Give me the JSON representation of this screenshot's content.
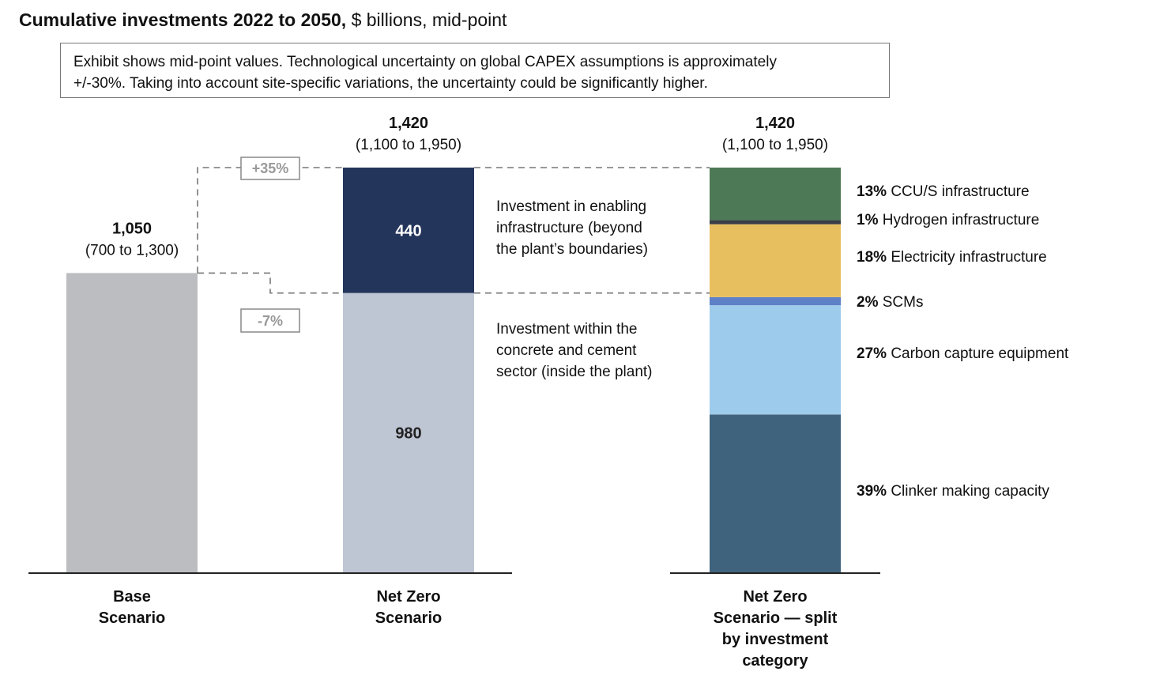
{
  "title_bold": "Cumulative investments 2022 to 2050,",
  "title_unit": "$ billions, mid-point",
  "note": "Exhibit shows mid-point values. Technological uncertainty on global CAPEX assumptions is approximately +/-30%. Taking into account site-specific variations, the uncertainty could be significantly higher.",
  "note_lines": [
    "Exhibit shows mid-point values. Technological uncertainty on global CAPEX assumptions is approximately",
    "+/-30%. Taking into account site-specific variations, the uncertainty could be significantly higher."
  ],
  "colors": {
    "base": "#bcbdc0",
    "inside_plant": "#bec5d3",
    "enabling": "#23355a",
    "ccus": "#4e7956",
    "hydrogen": "#3a3f47",
    "electricity": "#e8bf5f",
    "scms": "#5d80c7",
    "carbon_capture": "#9dcbec",
    "clinker": "#40637d"
  },
  "chart_data": {
    "type": "bar",
    "title": "Cumulative investments 2022 to 2050, $ billions, mid-point",
    "ylim": [
      0,
      1420
    ],
    "bars": [
      {
        "category_lines": [
          "Base",
          "Scenario"
        ],
        "total": 1050,
        "total_label": "1,050",
        "range_label": "(700 to 1,300)",
        "segments": [
          {
            "key": "base",
            "value": 1050,
            "label": "",
            "color": "#bcbdc0"
          }
        ]
      },
      {
        "category_lines": [
          "Net Zero",
          "Scenario"
        ],
        "total": 1420,
        "total_label": "1,420",
        "range_label": "(1,100 to 1,950)",
        "segments": [
          {
            "key": "inside_plant",
            "value": 980,
            "label": "980",
            "color": "#bec5d3"
          },
          {
            "key": "enabling",
            "value": 440,
            "label": "440",
            "color": "#23355a"
          }
        ]
      },
      {
        "category_lines": [
          "Net Zero",
          "Scenario — split",
          "by investment",
          "category"
        ],
        "total": 1420,
        "total_label": "1,420",
        "range_label": "(1,100 to 1,950)",
        "segments": [
          {
            "key": "clinker",
            "pct": 39,
            "pct_label": "39%",
            "name": "Clinker making capacity",
            "color": "#40637d"
          },
          {
            "key": "carbon_capture",
            "pct": 27,
            "pct_label": "27%",
            "name": "Carbon capture equipment",
            "color": "#9dcbec"
          },
          {
            "key": "scms",
            "pct": 2,
            "pct_label": "2%",
            "name": "SCMs",
            "color": "#5d80c7"
          },
          {
            "key": "electricity",
            "pct": 18,
            "pct_label": "18%",
            "name": "Electricity infrastructure",
            "color": "#e8bf5f"
          },
          {
            "key": "hydrogen",
            "pct": 1,
            "pct_label": "1%",
            "name": "Hydrogen infrastructure",
            "color": "#3a3f47"
          },
          {
            "key": "ccus",
            "pct": 13,
            "pct_label": "13%",
            "name": "CCU/S infrastructure",
            "color": "#4e7956"
          }
        ]
      }
    ],
    "annotations": {
      "increase_label": "+35%",
      "decrease_label": "-7%",
      "enabling_text": [
        "Investment in enabling",
        "infrastructure (beyond",
        "the plant’s boundaries)"
      ],
      "inside_text": [
        "Investment within the",
        "concrete and cement",
        "sector (inside the plant)"
      ]
    }
  }
}
